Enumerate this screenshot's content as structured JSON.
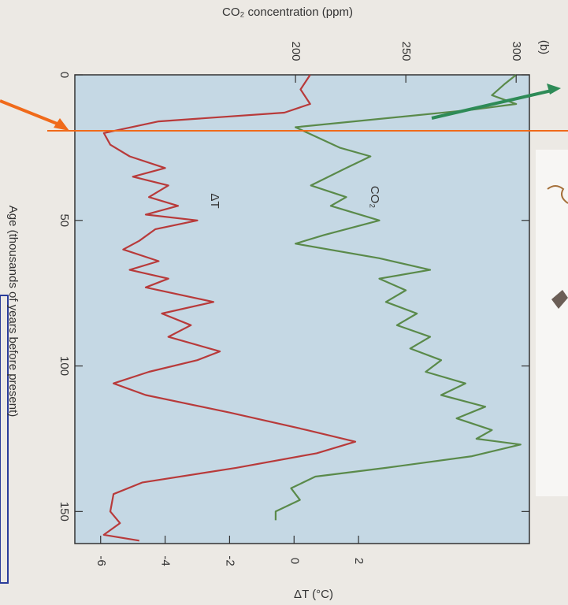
{
  "chart_data": {
    "type": "line",
    "panel_label": "(b)",
    "xlabel": "Age (thousands of years before present)",
    "ylabel": "CO₂ concentration (ppm)",
    "y2label": "ΔT (°C)",
    "xlim": [
      0,
      161
    ],
    "xticks": [
      0,
      50,
      100,
      150
    ],
    "ylim": [
      100,
      306
    ],
    "yticks": [
      200,
      250,
      300
    ],
    "y2lim": [
      -6.8,
      7.3
    ],
    "y2ticks": [
      -6,
      -4,
      -2,
      0,
      2
    ],
    "series": [
      {
        "name": "CO₂",
        "color": "#5a8a4a",
        "x": [
          0,
          3,
          7,
          10,
          12,
          18,
          25,
          28,
          32,
          38,
          42,
          45,
          50,
          55,
          58,
          63,
          67,
          70,
          74,
          78,
          82,
          86,
          90,
          94,
          98,
          102,
          106,
          110,
          114,
          118,
          122,
          125,
          127,
          131,
          135,
          138,
          142,
          146,
          150,
          153
        ],
        "values": [
          300,
          295,
          289,
          300,
          280,
          200,
          220,
          234,
          223,
          207,
          223,
          216,
          238,
          213,
          200,
          238,
          261,
          238,
          250,
          241,
          255,
          246,
          261,
          252,
          266,
          259,
          277,
          266,
          286,
          273,
          289,
          282,
          302,
          280,
          241,
          209,
          198,
          202,
          191,
          191
        ]
      },
      {
        "name": "ΔT",
        "color": "#b83a3a",
        "axis": "y2",
        "x": [
          0,
          5,
          10,
          13,
          16,
          20,
          24,
          28,
          32,
          35,
          38,
          42,
          45,
          48,
          50,
          53,
          57,
          60,
          64,
          67,
          70,
          73,
          78,
          82,
          86,
          90,
          95,
          98,
          102,
          106,
          110,
          116,
          122,
          126,
          130,
          135,
          140,
          144,
          150,
          154,
          158,
          160
        ],
        "values": [
          0.5,
          0.2,
          0.5,
          -0.3,
          -4.2,
          -5.9,
          -5.7,
          -5.1,
          -4.0,
          -5.0,
          -3.9,
          -4.5,
          -3.6,
          -4.6,
          -3.0,
          -4.3,
          -4.8,
          -5.3,
          -4.2,
          -5.1,
          -3.9,
          -4.6,
          -2.5,
          -4.1,
          -3.2,
          -3.9,
          -2.3,
          -3.0,
          -4.5,
          -5.6,
          -4.6,
          -2.0,
          0.4,
          1.9,
          0.7,
          -1.8,
          -4.7,
          -5.6,
          -5.7,
          -5.4,
          -5.9,
          -4.8
        ]
      }
    ]
  }
}
